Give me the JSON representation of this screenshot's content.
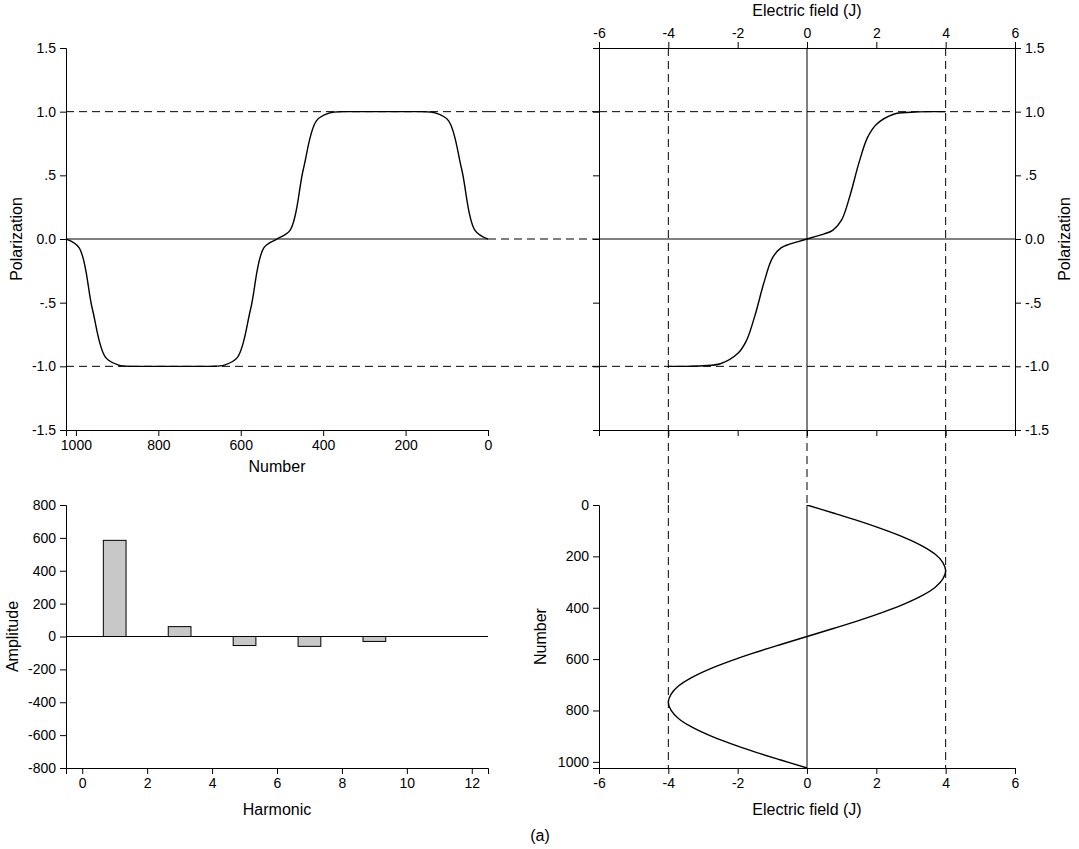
{
  "caption": "(a)",
  "chart_data": [
    {
      "type": "line",
      "x_label": "Number",
      "y_label": "Polarization",
      "color": "#000000",
      "x": [
        0,
        32,
        64,
        96,
        128,
        160,
        192,
        224,
        256,
        288,
        320,
        352,
        384,
        416,
        448,
        480,
        512,
        544,
        576,
        608,
        640,
        672,
        704,
        736,
        768,
        800,
        832,
        864,
        896,
        928,
        960,
        992,
        1024
      ],
      "values": [
        0,
        0.07,
        0.55,
        0.93,
        0.99,
        1,
        1,
        1,
        1,
        1,
        1,
        1,
        0.99,
        0.93,
        0.55,
        0.07,
        0,
        -0.07,
        -0.55,
        -0.93,
        -0.99,
        -1,
        -1,
        -1,
        -1,
        -1,
        -1,
        -1,
        -0.99,
        -0.93,
        -0.55,
        -0.07,
        0
      ],
      "xlim": [
        1024,
        0
      ],
      "xticks": [
        1000,
        800,
        600,
        400,
        200,
        0
      ],
      "ylim": [
        -1.5,
        1.5
      ],
      "yticks": [
        -1.5,
        {
          "value": -1,
          "label": "-1.0"
        },
        {
          "value": -0.5,
          "label": "-.5"
        },
        {
          "value": 0,
          "label": "0.0"
        },
        {
          "value": 0.5,
          "label": ".5"
        },
        {
          "value": 1,
          "label": "1.0"
        },
        1.5
      ],
      "reference_lines": {
        "y": [
          -1,
          0,
          1
        ]
      },
      "grid": false
    },
    {
      "type": "line",
      "x_label": "Electric field (J)",
      "y_label": "Polarization",
      "color": "#000000",
      "x": [
        -4,
        -3.5,
        -3,
        -2.5,
        -2,
        -1.75,
        -1.5,
        -1.25,
        -1,
        -0.75,
        -0.5,
        -0.25,
        0,
        0.25,
        0.5,
        0.75,
        1,
        1.25,
        1.5,
        1.75,
        2,
        2.5,
        3,
        3.5,
        4
      ],
      "values": [
        -1,
        -1,
        -0.995,
        -0.98,
        -0.9,
        -0.8,
        -0.6,
        -0.35,
        -0.15,
        -0.07,
        -0.04,
        -0.02,
        0,
        0.02,
        0.04,
        0.07,
        0.15,
        0.35,
        0.6,
        0.8,
        0.9,
        0.98,
        0.995,
        1,
        1
      ],
      "xlim": [
        -6,
        6
      ],
      "xticks": [
        -6,
        -4,
        -2,
        0,
        2,
        4,
        6
      ],
      "ylim": [
        -1.5,
        1.5
      ],
      "yticks": [
        -1.5,
        {
          "value": -1,
          "label": "-1.0"
        },
        {
          "value": -0.5,
          "label": "-.5"
        },
        {
          "value": 0,
          "label": "0.0"
        },
        {
          "value": 0.5,
          "label": ".5"
        },
        {
          "value": 1,
          "label": "1.0"
        },
        1.5
      ],
      "reference_lines": {
        "x": [
          -4,
          0,
          4
        ],
        "y": [
          -1,
          0,
          1
        ]
      },
      "grid": false
    },
    {
      "type": "bar",
      "x_label": "Harmonic",
      "y_label": "Amplitude",
      "color": "#c8c8c8",
      "x": [
        1,
        3,
        5,
        7,
        9
      ],
      "values": [
        585,
        60,
        -55,
        -60,
        -30
      ],
      "xlim": [
        -0.5,
        12.5
      ],
      "xticks": [
        0,
        2,
        4,
        6,
        8,
        10,
        12
      ],
      "ylim": [
        -800,
        800
      ],
      "yticks": [
        -800,
        -600,
        -400,
        -200,
        0,
        200,
        400,
        600,
        800
      ],
      "grid": false
    },
    {
      "type": "line",
      "x_label": "Electric field (J)",
      "y_label": "Number",
      "color": "#000000",
      "x": [
        0,
        0.78,
        1.53,
        2.22,
        2.83,
        3.33,
        3.7,
        3.92,
        4,
        3.92,
        3.7,
        3.33,
        2.83,
        2.22,
        1.53,
        0.78,
        0,
        -0.78,
        -1.53,
        -2.22,
        -2.83,
        -3.33,
        -3.7,
        -3.92,
        -4,
        -3.92,
        -3.7,
        -3.33,
        -2.83,
        -2.22,
        -1.53,
        -0.78,
        0
      ],
      "values": [
        0,
        32,
        64,
        96,
        128,
        160,
        192,
        224,
        256,
        288,
        320,
        352,
        384,
        416,
        448,
        480,
        512,
        544,
        576,
        608,
        640,
        672,
        704,
        736,
        768,
        800,
        832,
        864,
        896,
        928,
        960,
        992,
        1024
      ],
      "xlim": [
        -6,
        6
      ],
      "xticks": [
        -6,
        -4,
        -2,
        0,
        2,
        4,
        6
      ],
      "ylim": [
        1024,
        0
      ],
      "yticks": [
        0,
        200,
        400,
        600,
        800,
        1000
      ],
      "reference_lines": {
        "x": [
          -4,
          0,
          4
        ]
      },
      "grid": false
    }
  ]
}
